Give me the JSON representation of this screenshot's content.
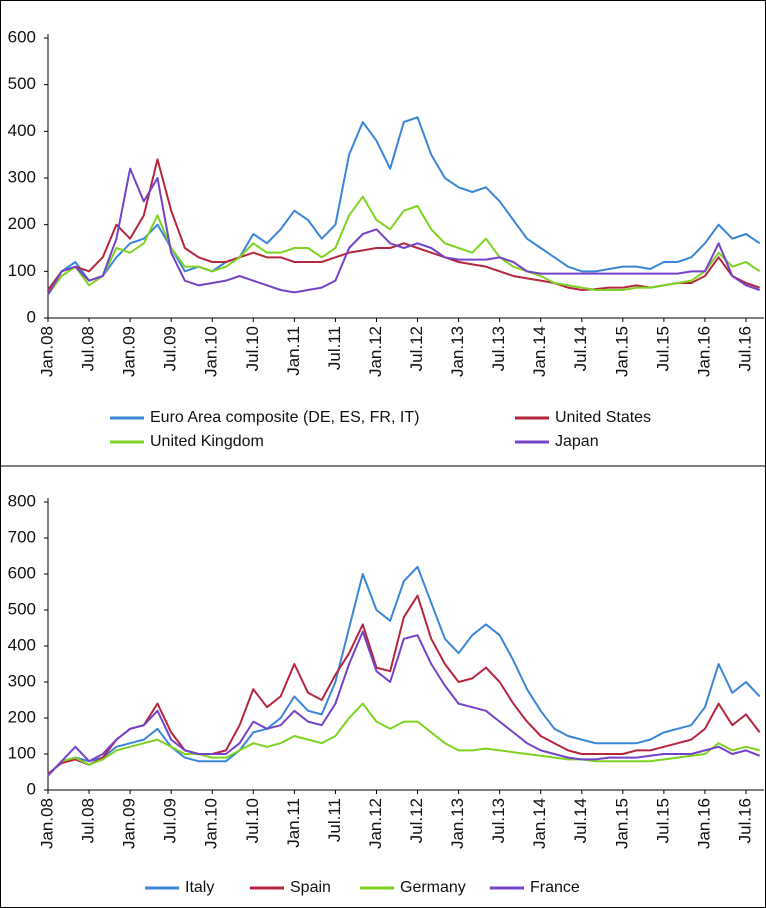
{
  "chart_data": [
    {
      "type": "line",
      "legend": "bottom",
      "categories": [
        "Jan.08",
        null,
        null,
        "Jul.08",
        null,
        null,
        "Jan.09",
        null,
        null,
        "Jul.09",
        null,
        null,
        "Jan.10",
        null,
        null,
        "Jul.10",
        null,
        null,
        "Jan.11",
        null,
        null,
        "Jul.11",
        null,
        null,
        "Jan.12",
        null,
        null,
        "Jul.12",
        null,
        null,
        "Jan.13",
        null,
        null,
        "Jul.13",
        null,
        null,
        "Jan.14",
        null,
        null,
        "Jul.14",
        null,
        null,
        "Jan.15",
        null,
        null,
        "Jul.15",
        null,
        null,
        "Jan.16",
        null,
        null,
        "Jul.16",
        null
      ],
      "ylim": [
        0,
        600
      ],
      "yticks": [
        0,
        100,
        200,
        300,
        400,
        500,
        600
      ],
      "series": [
        {
          "name": "Euro Area composite (DE, ES, FR, IT)",
          "color": "#3a86d6",
          "values": [
            50,
            100,
            120,
            80,
            90,
            130,
            160,
            170,
            200,
            150,
            100,
            110,
            100,
            120,
            130,
            180,
            160,
            190,
            230,
            210,
            170,
            200,
            350,
            420,
            380,
            320,
            420,
            430,
            350,
            300,
            280,
            270,
            280,
            250,
            210,
            170,
            150,
            130,
            110,
            100,
            100,
            105,
            110,
            110,
            105,
            120,
            120,
            130,
            160,
            200,
            170,
            180,
            160
          ]
        },
        {
          "name": "United States",
          "color": "#b5263f",
          "values": [
            60,
            100,
            110,
            100,
            130,
            200,
            170,
            220,
            340,
            230,
            150,
            130,
            120,
            120,
            130,
            140,
            130,
            130,
            120,
            120,
            120,
            130,
            140,
            145,
            150,
            150,
            160,
            150,
            140,
            130,
            120,
            115,
            110,
            100,
            90,
            85,
            80,
            75,
            65,
            60,
            62,
            65,
            65,
            70,
            65,
            70,
            75,
            75,
            90,
            130,
            90,
            75,
            65
          ]
        },
        {
          "name": "United Kingdom",
          "color": "#7ed321",
          "values": [
            50,
            90,
            110,
            70,
            90,
            150,
            140,
            160,
            220,
            150,
            110,
            110,
            100,
            110,
            130,
            160,
            140,
            140,
            150,
            150,
            130,
            150,
            220,
            260,
            210,
            190,
            230,
            240,
            190,
            160,
            150,
            140,
            170,
            130,
            110,
            100,
            90,
            75,
            70,
            65,
            60,
            60,
            60,
            65,
            65,
            70,
            75,
            80,
            100,
            140,
            110,
            120,
            100
          ]
        },
        {
          "name": "Japan",
          "color": "#7443c7",
          "values": [
            50,
            100,
            110,
            80,
            90,
            170,
            320,
            250,
            300,
            140,
            80,
            70,
            75,
            80,
            90,
            80,
            70,
            60,
            55,
            60,
            65,
            80,
            150,
            180,
            190,
            160,
            150,
            160,
            150,
            130,
            125,
            125,
            125,
            130,
            120,
            100,
            95,
            95,
            95,
            95,
            95,
            95,
            95,
            95,
            95,
            95,
            95,
            100,
            100,
            160,
            90,
            70,
            60
          ]
        }
      ]
    },
    {
      "type": "line",
      "legend": "bottom",
      "categories": [
        "Jan.08",
        null,
        null,
        "Jul.08",
        null,
        null,
        "Jan.09",
        null,
        null,
        "Jul.09",
        null,
        null,
        "Jan.10",
        null,
        null,
        "Jul.10",
        null,
        null,
        "Jan.11",
        null,
        null,
        "Jul.11",
        null,
        null,
        "Jan.12",
        null,
        null,
        "Jul.12",
        null,
        null,
        "Jan.13",
        null,
        null,
        "Jul.13",
        null,
        null,
        "Jan.14",
        null,
        null,
        "Jul.14",
        null,
        null,
        "Jan.15",
        null,
        null,
        "Jul.15",
        null,
        null,
        "Jan.16",
        null,
        null,
        "Jul.16",
        null
      ],
      "ylim": [
        0,
        800
      ],
      "yticks": [
        0,
        100,
        200,
        300,
        400,
        500,
        600,
        700,
        800
      ],
      "series": [
        {
          "name": "Italy",
          "color": "#3a86d6",
          "values": [
            40,
            80,
            90,
            80,
            90,
            120,
            130,
            140,
            170,
            120,
            90,
            80,
            80,
            80,
            110,
            160,
            170,
            200,
            260,
            220,
            210,
            300,
            450,
            600,
            500,
            470,
            580,
            620,
            520,
            420,
            380,
            430,
            460,
            430,
            360,
            280,
            220,
            170,
            150,
            140,
            130,
            130,
            130,
            130,
            140,
            160,
            170,
            180,
            230,
            350,
            270,
            300,
            260
          ]
        },
        {
          "name": "Spain",
          "color": "#b5263f",
          "values": [
            45,
            75,
            85,
            70,
            90,
            140,
            170,
            180,
            240,
            160,
            110,
            100,
            100,
            110,
            180,
            280,
            230,
            260,
            350,
            270,
            250,
            320,
            380,
            460,
            340,
            330,
            480,
            540,
            420,
            350,
            300,
            310,
            340,
            300,
            240,
            190,
            150,
            130,
            110,
            100,
            100,
            100,
            100,
            110,
            110,
            120,
            130,
            140,
            170,
            240,
            180,
            210,
            160
          ]
        },
        {
          "name": "Germany",
          "color": "#7ed321",
          "values": [
            40,
            80,
            90,
            70,
            85,
            110,
            120,
            130,
            140,
            120,
            100,
            100,
            90,
            90,
            110,
            130,
            120,
            130,
            150,
            140,
            130,
            150,
            200,
            240,
            190,
            170,
            190,
            190,
            160,
            130,
            110,
            110,
            115,
            110,
            105,
            100,
            95,
            90,
            85,
            85,
            80,
            80,
            80,
            80,
            80,
            85,
            90,
            95,
            100,
            130,
            110,
            120,
            110
          ]
        },
        {
          "name": "France",
          "color": "#7443c7",
          "values": [
            40,
            80,
            120,
            80,
            100,
            140,
            170,
            180,
            220,
            140,
            110,
            100,
            100,
            100,
            130,
            190,
            170,
            180,
            220,
            190,
            180,
            240,
            350,
            440,
            330,
            300,
            420,
            430,
            350,
            290,
            240,
            230,
            220,
            190,
            160,
            130,
            110,
            100,
            90,
            85,
            85,
            90,
            90,
            90,
            95,
            100,
            100,
            100,
            110,
            120,
            100,
            110,
            95
          ]
        }
      ]
    }
  ]
}
